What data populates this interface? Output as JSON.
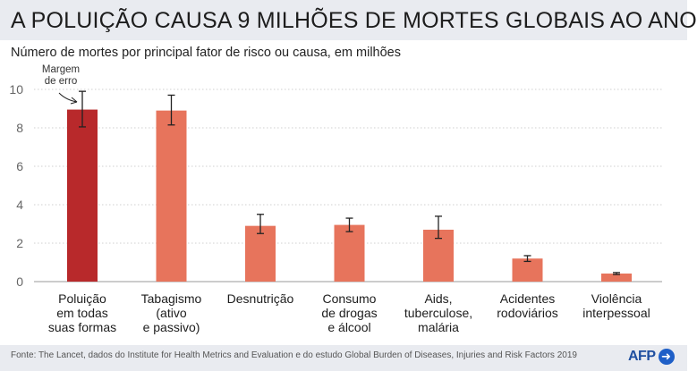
{
  "header": {
    "title": "A POLUIÇÃO CAUSA 9 MILHÕES DE MORTES GLOBAIS AO ANO"
  },
  "chart_data": {
    "type": "bar",
    "title": "A POLUIÇÃO CAUSA 9 MILHÕES DE MORTES GLOBAIS AO ANO",
    "subtitle": "Número de mortes por principal fator de risco ou causa, em milhões",
    "xlabel": "",
    "ylabel": "",
    "ylim": [
      0,
      10
    ],
    "yticks": [
      "0",
      "2",
      "4",
      "6",
      "8",
      "10"
    ],
    "grid": true,
    "categories": [
      [
        "Poluição",
        "em todas",
        "suas formas"
      ],
      [
        "Tabagismo",
        "(ativo",
        "e passivo)"
      ],
      [
        "Desnutrição"
      ],
      [
        "Consumo",
        "de drogas",
        "e álcool"
      ],
      [
        "Aids,",
        "tuberculose,",
        "malária"
      ],
      [
        "Acidentes",
        "rodoviários"
      ],
      [
        "Violência",
        "interpessoal"
      ]
    ],
    "values": [
      8.95,
      8.9,
      2.9,
      2.95,
      2.7,
      1.2,
      0.42
    ],
    "error_low": [
      8.05,
      8.15,
      2.5,
      2.6,
      2.25,
      1.05,
      0.37
    ],
    "error_high": [
      9.9,
      9.7,
      3.5,
      3.3,
      3.4,
      1.35,
      0.47
    ],
    "highlight_index": 0,
    "annotation": [
      "Margem",
      "de erro"
    ]
  },
  "colors": {
    "highlight_bar": "#b8292b",
    "bar": "#e7745c",
    "grid": "#cfcfcf",
    "axis_text": "#666666",
    "label_text": "#1d1d1d"
  },
  "footer": {
    "source": "Fonte: The Lancet, dados do Institute for Health Metrics and Evaluation e do estudo Global Burden of Diseases, Injuries and Risk Factors 2019",
    "logo_text": "AFP",
    "logo_icon": "arrow-right-icon",
    "logo_glyph": "➜"
  }
}
